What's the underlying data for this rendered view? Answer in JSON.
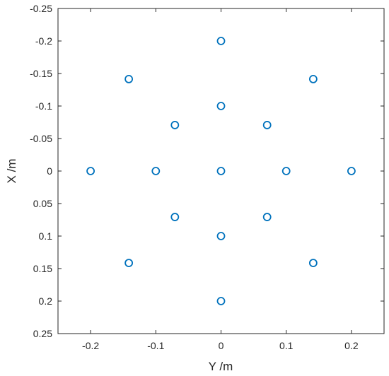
{
  "chart_data": {
    "type": "scatter",
    "title": "",
    "xlabel": "Y /m",
    "ylabel": "X /m",
    "xlim": [
      -0.25,
      0.25
    ],
    "ylim": [
      -0.25,
      0.25
    ],
    "y_reversed": true,
    "grid": false,
    "legend": "none",
    "marker": "open-circle",
    "marker_color": "#0072BD",
    "x_ticks": [
      "-0.2",
      "-0.1",
      "0",
      "0.1",
      "0.2"
    ],
    "x_tick_values": [
      -0.2,
      -0.1,
      0,
      0.1,
      0.2
    ],
    "y_ticks": [
      "-0.25",
      "-0.2",
      "-0.15",
      "-0.1",
      "-0.05",
      "0",
      "0.05",
      "0.1",
      "0.15",
      "0.2",
      "0.25"
    ],
    "y_tick_values": [
      -0.25,
      -0.2,
      -0.15,
      -0.1,
      -0.05,
      0,
      0.05,
      0.1,
      0.15,
      0.2,
      0.25
    ],
    "series": [
      {
        "x": [
          0,
          0,
          0,
          0,
          0,
          -0.2,
          -0.1,
          0.1,
          0.2,
          -0.1414,
          0.1414,
          -0.0707,
          0.0707,
          -0.0707,
          0.0707,
          -0.1414,
          0.1414
        ],
        "y": [
          -0.2,
          -0.1,
          0,
          0.1,
          0.2,
          0,
          0,
          0,
          0,
          -0.1414,
          -0.1414,
          -0.0707,
          -0.0707,
          0.0707,
          0.0707,
          0.1414,
          0.1414
        ]
      }
    ]
  }
}
